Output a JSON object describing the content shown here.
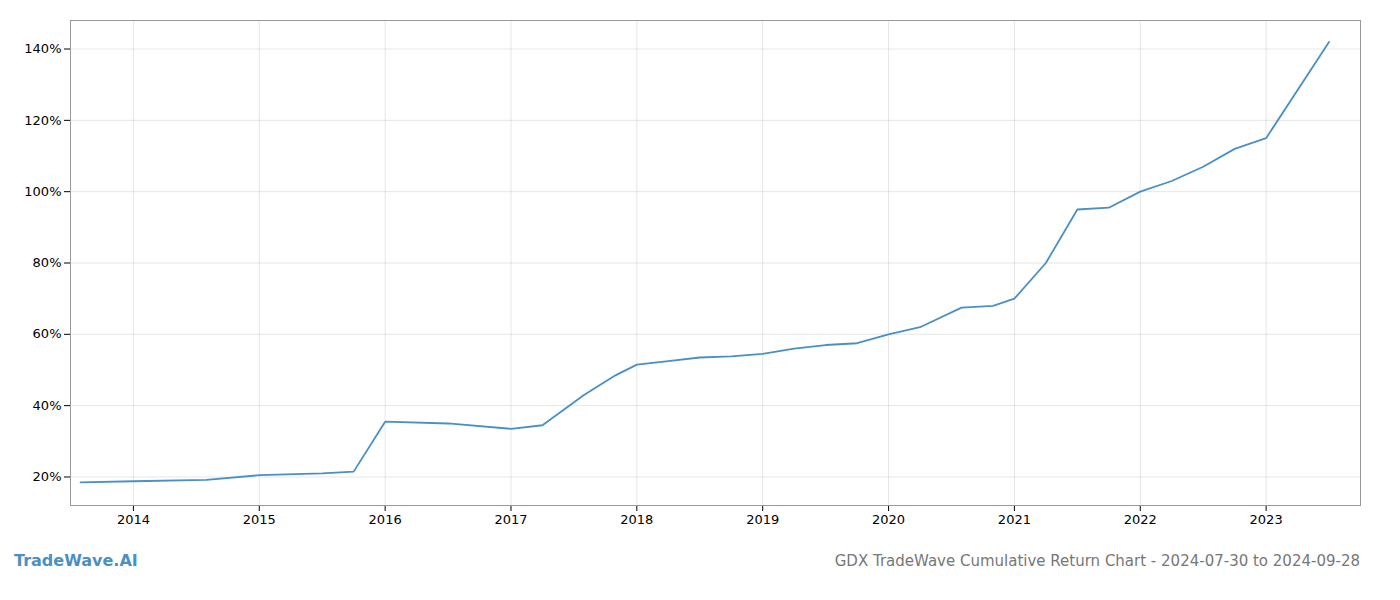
{
  "chart_data": {
    "type": "line",
    "title": "GDX TradeWave Cumulative Return Chart - 2024-07-30 to 2024-09-28",
    "annotations": [
      "TradeWave.AI"
    ],
    "x": [
      2013.58,
      2014.0,
      2014.58,
      2015.0,
      2015.5,
      2015.75,
      2016.0,
      2016.5,
      2017.0,
      2017.25,
      2017.58,
      2017.83,
      2018.0,
      2018.25,
      2018.5,
      2018.75,
      2019.0,
      2019.25,
      2019.5,
      2019.75,
      2020.0,
      2020.25,
      2020.58,
      2020.83,
      2021.0,
      2021.25,
      2021.5,
      2021.75,
      2022.0,
      2022.25,
      2022.5,
      2022.75,
      2023.0,
      2023.5
    ],
    "values": [
      18.5,
      18.8,
      19.2,
      20.5,
      21.0,
      21.5,
      35.5,
      35.0,
      33.5,
      34.5,
      43.0,
      48.5,
      51.5,
      52.5,
      53.5,
      53.8,
      54.5,
      56.0,
      57.0,
      57.5,
      60.0,
      62.0,
      67.5,
      68.0,
      70.0,
      80.0,
      95.0,
      95.5,
      100.0,
      103.0,
      107.0,
      112.0,
      115.0,
      142.0
    ],
    "color": "#4a90c4",
    "xlim": [
      2013.5,
      2023.75
    ],
    "ylim": [
      12,
      148
    ],
    "xticks": [
      2014,
      2015,
      2016,
      2017,
      2018,
      2019,
      2020,
      2021,
      2022,
      2023
    ],
    "yticks": [
      {
        "value": 20,
        "label": "20%"
      },
      {
        "value": 40,
        "label": "40%"
      },
      {
        "value": 60,
        "label": "60%"
      },
      {
        "value": 80,
        "label": "80%"
      },
      {
        "value": 100,
        "label": "100%"
      },
      {
        "value": 120,
        "label": "120%"
      },
      {
        "value": 140,
        "label": "140%"
      }
    ],
    "grid": true
  }
}
